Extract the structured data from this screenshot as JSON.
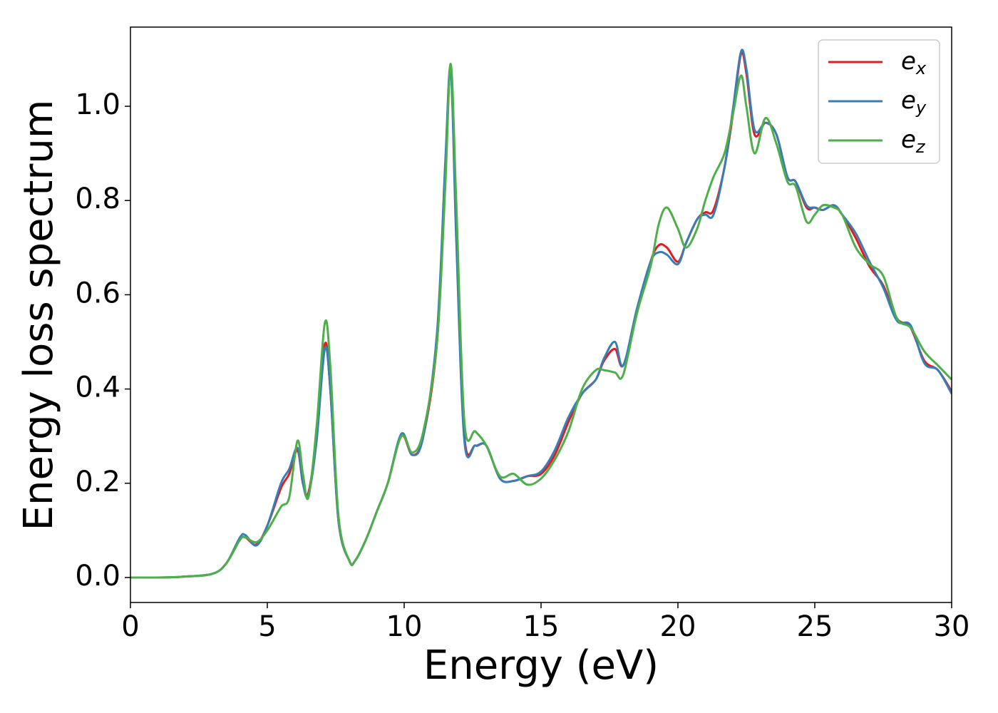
{
  "chart_data": {
    "type": "line",
    "xlabel": "Energy (eV)",
    "ylabel": "Energy loss spectrum",
    "x": [
      0,
      1,
      2,
      3,
      3.5,
      4,
      4.2,
      4.6,
      5,
      5.5,
      5.8,
      6.1,
      6.3,
      6.5,
      6.8,
      7.1,
      7.3,
      7.6,
      8.0,
      8.2,
      8.6,
      9.0,
      9.4,
      9.9,
      10.3,
      10.7,
      11.2,
      11.5,
      11.7,
      11.9,
      12.2,
      12.6,
      13.0,
      13.5,
      14.0,
      14.5,
      15,
      15.5,
      16,
      16.5,
      17,
      17.3,
      17.7,
      18,
      18.5,
      19,
      19.3,
      19.6,
      20,
      20.3,
      20.7,
      21,
      21.3,
      21.7,
      22,
      22.3,
      22.5,
      22.8,
      23.2,
      23.6,
      24,
      24.3,
      24.7,
      25,
      25.3,
      25.7,
      26,
      26.5,
      27,
      27.5,
      28,
      28.5,
      29,
      29.5,
      30
    ],
    "series": [
      {
        "name": "e_x",
        "color": "#e41a1c",
        "values": [
          0,
          0,
          0.002,
          0.008,
          0.03,
          0.08,
          0.085,
          0.07,
          0.11,
          0.19,
          0.22,
          0.27,
          0.2,
          0.18,
          0.3,
          0.495,
          0.4,
          0.12,
          0.035,
          0.035,
          0.08,
          0.14,
          0.2,
          0.3,
          0.26,
          0.3,
          0.5,
          0.85,
          1.08,
          0.75,
          0.3,
          0.28,
          0.28,
          0.21,
          0.205,
          0.215,
          0.22,
          0.26,
          0.33,
          0.39,
          0.42,
          0.46,
          0.485,
          0.45,
          0.56,
          0.67,
          0.705,
          0.7,
          0.67,
          0.71,
          0.76,
          0.775,
          0.78,
          0.87,
          0.98,
          1.11,
          1.07,
          0.94,
          0.965,
          0.94,
          0.85,
          0.84,
          0.785,
          0.785,
          0.78,
          0.79,
          0.77,
          0.72,
          0.66,
          0.62,
          0.55,
          0.53,
          0.46,
          0.44,
          0.395
        ]
      },
      {
        "name": "e_y",
        "color": "#377eb8",
        "values": [
          0,
          0,
          0.002,
          0.008,
          0.03,
          0.085,
          0.09,
          0.068,
          0.11,
          0.2,
          0.23,
          0.275,
          0.2,
          0.175,
          0.29,
          0.485,
          0.4,
          0.12,
          0.035,
          0.035,
          0.08,
          0.14,
          0.2,
          0.305,
          0.26,
          0.3,
          0.52,
          0.88,
          1.08,
          0.72,
          0.29,
          0.28,
          0.28,
          0.21,
          0.205,
          0.215,
          0.225,
          0.27,
          0.34,
          0.39,
          0.42,
          0.465,
          0.5,
          0.45,
          0.57,
          0.67,
          0.69,
          0.685,
          0.665,
          0.71,
          0.76,
          0.77,
          0.77,
          0.87,
          0.99,
          1.115,
          1.08,
          0.95,
          0.965,
          0.94,
          0.85,
          0.84,
          0.79,
          0.785,
          0.78,
          0.79,
          0.77,
          0.73,
          0.67,
          0.615,
          0.545,
          0.535,
          0.455,
          0.44,
          0.39
        ]
      },
      {
        "name": "e_z",
        "color": "#4daf4a",
        "values": [
          0,
          0,
          0.002,
          0.008,
          0.03,
          0.08,
          0.085,
          0.075,
          0.1,
          0.15,
          0.17,
          0.29,
          0.22,
          0.17,
          0.32,
          0.54,
          0.45,
          0.13,
          0.035,
          0.035,
          0.08,
          0.14,
          0.2,
          0.3,
          0.265,
          0.31,
          0.5,
          0.83,
          1.09,
          0.8,
          0.33,
          0.31,
          0.28,
          0.215,
          0.22,
          0.197,
          0.21,
          0.25,
          0.31,
          0.4,
          0.44,
          0.44,
          0.435,
          0.43,
          0.56,
          0.66,
          0.75,
          0.785,
          0.74,
          0.7,
          0.74,
          0.8,
          0.85,
          0.9,
          0.98,
          1.065,
          1.0,
          0.9,
          0.975,
          0.92,
          0.84,
          0.83,
          0.755,
          0.77,
          0.79,
          0.785,
          0.77,
          0.7,
          0.665,
          0.64,
          0.55,
          0.53,
          0.48,
          0.45,
          0.42
        ]
      }
    ],
    "xlim": [
      0,
      30
    ],
    "xticks": [
      0,
      5,
      10,
      15,
      20,
      25,
      30
    ],
    "ylim": [
      -0.053,
      1.168
    ],
    "yticks": [
      {
        "value": 0,
        "label": "0.0"
      },
      0.2,
      0.4,
      0.6,
      0.8,
      {
        "value": 1,
        "label": "1.0"
      }
    ],
    "legend": "upper right",
    "grid": false
  }
}
